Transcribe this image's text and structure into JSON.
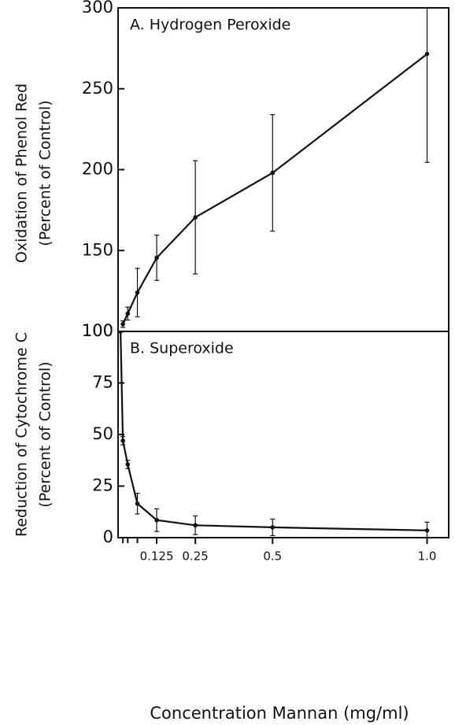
{
  "chart_data": [
    {
      "type": "line",
      "title": "A. Hydrogen Peroxide",
      "ylabel": [
        "Oxidation of Phenol Red",
        "(Percent of Control)"
      ],
      "x": [
        0.0156,
        0.03125,
        0.0625,
        0.125,
        0.25,
        0.5,
        1.0
      ],
      "series": [
        {
          "color": "#111111",
          "values": [
            104.5,
            111,
            124,
            145.5,
            170.5,
            198,
            271.5
          ],
          "errors": [
            2,
            4,
            15,
            14,
            35,
            36,
            67
          ]
        }
      ],
      "xlim": [
        0,
        1.07
      ],
      "ylim": [
        100,
        300
      ],
      "yticks": [
        100,
        150,
        200,
        250,
        300
      ]
    },
    {
      "type": "line",
      "title": "B. Superoxide",
      "ylabel": [
        "Reduction of Cytochrome C",
        "(Percent of Control)"
      ],
      "xlabel": "Concentration Mannan (mg/ml)",
      "x": [
        0.008,
        0.0156,
        0.03125,
        0.0625,
        0.125,
        0.25,
        0.5,
        1.0
      ],
      "series": [
        {
          "color": "#111111",
          "values": [
            100,
            47,
            35.5,
            16.5,
            8.5,
            6,
            5,
            3.5
          ],
          "errors": [
            0,
            2,
            2,
            5,
            5.5,
            4.5,
            4,
            4
          ]
        }
      ],
      "xlim": [
        0,
        1.07
      ],
      "ylim": [
        0,
        100
      ],
      "yticks": [
        0,
        25,
        50,
        75,
        100
      ],
      "xticks": [
        0.125,
        0.25,
        0.5,
        {
          "value": 1.0,
          "label": "1.0"
        }
      ],
      "xminorticks": [
        0.0156,
        0.03125,
        0.0625
      ]
    }
  ]
}
